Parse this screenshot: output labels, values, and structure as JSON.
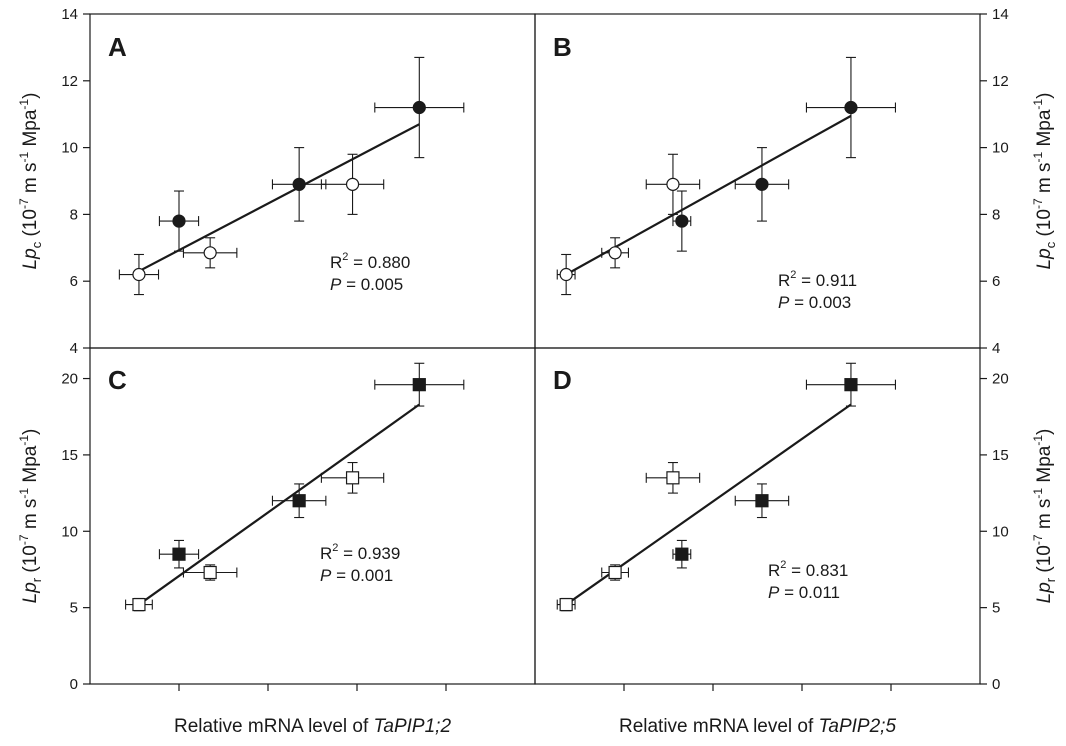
{
  "chart_data": [
    {
      "type": "scatter",
      "panel": "A",
      "xlabel_prefix": "Relative mRNA level of ",
      "xlabel_gene": "TaPIP1;2",
      "ylabel": {
        "var": "Lp",
        "sub": "c",
        "unit_open": " (10",
        "exp1": "-7",
        "unit_mid": " m s",
        "exp2": "-1",
        "unit_mid2": " Mpa",
        "exp3": "-1",
        "unit_close": ")"
      },
      "ylim": [
        4,
        14
      ],
      "yticks": [
        4,
        6,
        8,
        10,
        12,
        14
      ],
      "xlim": [
        0,
        5
      ],
      "stats": {
        "r2_label": "R",
        "r2_sup": "2",
        "r2_value": " = 0.880",
        "p_label": "P",
        "p_value": " = 0.005"
      },
      "points": [
        {
          "x": 0.55,
          "y": 6.2,
          "xerr": 0.22,
          "yerr": 0.6,
          "filled": false
        },
        {
          "x": 1.0,
          "y": 7.8,
          "xerr": 0.22,
          "yerr": 0.9,
          "filled": true
        },
        {
          "x": 1.35,
          "y": 6.85,
          "xerr": 0.3,
          "yerr": 0.45,
          "filled": false
        },
        {
          "x": 2.35,
          "y": 8.9,
          "xerr": 0.3,
          "yerr": 1.1,
          "filled": true
        },
        {
          "x": 2.95,
          "y": 8.9,
          "xerr": 0.35,
          "yerr": 0.9,
          "filled": false
        },
        {
          "x": 3.7,
          "y": 11.2,
          "xerr": 0.5,
          "yerr": 1.5,
          "filled": true
        }
      ],
      "fit": {
        "x": [
          0.55,
          3.7
        ],
        "y": [
          6.3,
          10.7
        ]
      }
    },
    {
      "type": "scatter",
      "panel": "B",
      "xlabel_prefix": "Relative mRNA level of ",
      "xlabel_gene": "TaPIP2;5",
      "ylabel": {
        "var": "Lp",
        "sub": "c",
        "unit_open": " (10",
        "exp1": "-7",
        "unit_mid": " m s",
        "exp2": "-1",
        "unit_mid2": " Mpa",
        "exp3": "-1",
        "unit_close": ")"
      },
      "ylim": [
        4,
        14
      ],
      "yticks": [
        4,
        6,
        8,
        10,
        12,
        14
      ],
      "xlim": [
        0,
        5
      ],
      "stats": {
        "r2_label": "R",
        "r2_sup": "2",
        "r2_value": " = 0.911",
        "p_label": "P",
        "p_value": " = 0.003"
      },
      "points": [
        {
          "x": 0.35,
          "y": 6.2,
          "xerr": 0.1,
          "yerr": 0.6,
          "filled": false
        },
        {
          "x": 0.9,
          "y": 6.85,
          "xerr": 0.15,
          "yerr": 0.45,
          "filled": false
        },
        {
          "x": 1.55,
          "y": 8.9,
          "xerr": 0.3,
          "yerr": 0.9,
          "filled": false
        },
        {
          "x": 1.65,
          "y": 7.8,
          "xerr": 0.1,
          "yerr": 0.9,
          "filled": true
        },
        {
          "x": 2.55,
          "y": 8.9,
          "xerr": 0.3,
          "yerr": 1.1,
          "filled": true
        },
        {
          "x": 3.55,
          "y": 11.2,
          "xerr": 0.5,
          "yerr": 1.5,
          "filled": true
        }
      ],
      "fit": {
        "x": [
          0.35,
          3.55
        ],
        "y": [
          6.2,
          10.95
        ]
      }
    },
    {
      "type": "scatter",
      "panel": "C",
      "xlabel_prefix": "Relative mRNA level of ",
      "xlabel_gene": "TaPIP1;2",
      "ylabel": {
        "var": "Lp",
        "sub": "r",
        "unit_open": " (10",
        "exp1": "-7",
        "unit_mid": " m s",
        "exp2": "-1",
        "unit_mid2": " Mpa",
        "exp3": "-1",
        "unit_close": ")"
      },
      "ylim": [
        0,
        22
      ],
      "yticks": [
        0,
        5,
        10,
        15,
        20
      ],
      "xlim": [
        0,
        5
      ],
      "stats": {
        "r2_label": "R",
        "r2_sup": "2",
        "r2_value": " = 0.939",
        "p_label": "P",
        "p_value": " = 0.001"
      },
      "points": [
        {
          "x": 0.55,
          "y": 5.2,
          "xerr": 0.15,
          "yerr": 0.4,
          "filled": false
        },
        {
          "x": 1.0,
          "y": 8.5,
          "xerr": 0.22,
          "yerr": 0.9,
          "filled": true
        },
        {
          "x": 1.35,
          "y": 7.3,
          "xerr": 0.3,
          "yerr": 0.5,
          "filled": false
        },
        {
          "x": 2.35,
          "y": 12.0,
          "xerr": 0.3,
          "yerr": 1.1,
          "filled": true
        },
        {
          "x": 2.95,
          "y": 13.5,
          "xerr": 0.35,
          "yerr": 1.0,
          "filled": false
        },
        {
          "x": 3.7,
          "y": 19.6,
          "xerr": 0.5,
          "yerr": 1.4,
          "filled": true
        }
      ],
      "fit": {
        "x": [
          0.55,
          3.7
        ],
        "y": [
          5.2,
          18.3
        ]
      }
    },
    {
      "type": "scatter",
      "panel": "D",
      "xlabel_prefix": "Relative mRNA level of ",
      "xlabel_gene": "TaPIP2;5",
      "ylabel": {
        "var": "Lp",
        "sub": "r",
        "unit_open": " (10",
        "exp1": "-7",
        "unit_mid": " m s",
        "exp2": "-1",
        "unit_mid2": " Mpa",
        "exp3": "-1",
        "unit_close": ")"
      },
      "ylim": [
        0,
        22
      ],
      "yticks": [
        0,
        5,
        10,
        15,
        20
      ],
      "xlim": [
        0,
        5
      ],
      "stats": {
        "r2_label": "R",
        "r2_sup": "2",
        "r2_value": " = 0.831",
        "p_label": "P",
        "p_value": " = 0.011"
      },
      "points": [
        {
          "x": 0.35,
          "y": 5.2,
          "xerr": 0.1,
          "yerr": 0.4,
          "filled": false
        },
        {
          "x": 0.9,
          "y": 7.3,
          "xerr": 0.15,
          "yerr": 0.5,
          "filled": false
        },
        {
          "x": 1.55,
          "y": 13.5,
          "xerr": 0.3,
          "yerr": 1.0,
          "filled": false
        },
        {
          "x": 1.65,
          "y": 8.5,
          "xerr": 0.1,
          "yerr": 0.9,
          "filled": true
        },
        {
          "x": 2.55,
          "y": 12.0,
          "xerr": 0.3,
          "yerr": 1.1,
          "filled": true
        },
        {
          "x": 3.55,
          "y": 19.6,
          "xerr": 0.5,
          "yerr": 1.4,
          "filled": true
        }
      ],
      "fit": {
        "x": [
          0.35,
          3.55
        ],
        "y": [
          5.2,
          18.3
        ]
      }
    }
  ],
  "colors": {
    "ink": "#1a1a1a",
    "open_fill": "#ffffff"
  }
}
